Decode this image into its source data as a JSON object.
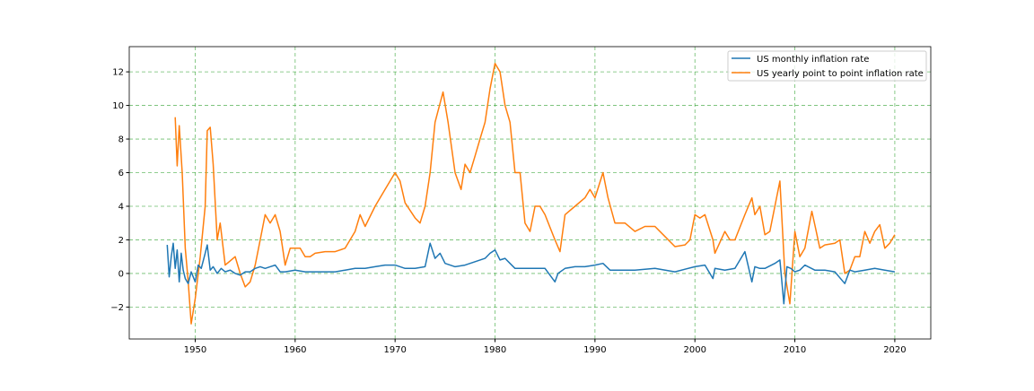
{
  "chart_data": {
    "type": "line",
    "title": "",
    "xlabel": "",
    "ylabel": "",
    "xlim": [
      1943.4,
      2023.6
    ],
    "ylim": [
      -3.9,
      13.5
    ],
    "xticks": [
      1950,
      1960,
      1970,
      1980,
      1990,
      2000,
      2010,
      2020
    ],
    "yticks": [
      -2,
      0,
      2,
      4,
      6,
      8,
      10,
      12
    ],
    "ytick_labels": [
      "−2",
      "0",
      "2",
      "4",
      "6",
      "8",
      "10",
      "12"
    ],
    "grid": true,
    "grid_color": "#2ca02c",
    "legend_position": "top-right",
    "series": [
      {
        "name": "US monthly inflation rate",
        "color": "#1f77b4",
        "x": [
          1947.2,
          1947.4,
          1947.6,
          1947.8,
          1948.0,
          1948.2,
          1948.4,
          1948.6,
          1948.8,
          1949.0,
          1949.3,
          1949.6,
          1950.0,
          1950.3,
          1950.6,
          1951.0,
          1951.2,
          1951.5,
          1951.8,
          1952.2,
          1952.6,
          1953.0,
          1953.5,
          1954.0,
          1954.5,
          1955.0,
          1955.5,
          1956.0,
          1956.5,
          1957.0,
          1957.5,
          1958.0,
          1958.5,
          1959.0,
          1960.0,
          1961.0,
          1962.0,
          1963.0,
          1964.0,
          1965.0,
          1966.0,
          1967.0,
          1968.0,
          1969.0,
          1970.0,
          1971.0,
          1972.0,
          1973.0,
          1973.5,
          1974.0,
          1974.5,
          1975.0,
          1976.0,
          1977.0,
          1978.0,
          1979.0,
          1979.5,
          1980.0,
          1980.5,
          1981.0,
          1981.5,
          1982.0,
          1983.0,
          1984.0,
          1985.0,
          1986.0,
          1986.3,
          1987.0,
          1988.0,
          1989.0,
          1990.0,
          1990.8,
          1991.5,
          1992.0,
          1994.0,
          1996.0,
          1998.0,
          2000.0,
          2001.0,
          2001.8,
          2002.0,
          2003.0,
          2004.0,
          2005.0,
          2005.7,
          2006.0,
          2006.5,
          2007.0,
          2008.0,
          2008.5,
          2008.9,
          2009.2,
          2009.6,
          2010.0,
          2010.5,
          2011.0,
          2012.0,
          2013.0,
          2014.0,
          2015.0,
          2015.5,
          2016.0,
          2017.0,
          2018.0,
          2019.0,
          2020.0
        ],
        "y": [
          1.7,
          -0.2,
          1.0,
          1.8,
          0.3,
          1.4,
          -0.5,
          1.2,
          0.2,
          -0.3,
          -0.6,
          0.1,
          -0.5,
          0.5,
          0.3,
          1.2,
          1.7,
          0.2,
          0.4,
          0.0,
          0.3,
          0.1,
          0.2,
          0.0,
          -0.1,
          0.1,
          0.1,
          0.3,
          0.4,
          0.3,
          0.4,
          0.5,
          0.1,
          0.1,
          0.2,
          0.1,
          0.1,
          0.1,
          0.1,
          0.2,
          0.3,
          0.3,
          0.4,
          0.5,
          0.5,
          0.3,
          0.3,
          0.4,
          1.8,
          0.9,
          1.2,
          0.6,
          0.4,
          0.5,
          0.7,
          0.9,
          1.2,
          1.4,
          0.8,
          0.9,
          0.6,
          0.3,
          0.3,
          0.3,
          0.3,
          -0.5,
          0.0,
          0.3,
          0.4,
          0.4,
          0.5,
          0.6,
          0.2,
          0.2,
          0.2,
          0.3,
          0.1,
          0.4,
          0.5,
          -0.3,
          0.3,
          0.2,
          0.3,
          1.3,
          -0.5,
          0.4,
          0.3,
          0.3,
          0.6,
          0.8,
          -1.8,
          0.4,
          0.3,
          0.1,
          0.2,
          0.5,
          0.2,
          0.2,
          0.1,
          -0.6,
          0.2,
          0.1,
          0.2,
          0.3,
          0.2,
          0.1
        ]
      },
      {
        "name": "US yearly point to point inflation rate",
        "color": "#ff7f0e",
        "x": [
          1948.0,
          1948.2,
          1948.4,
          1948.7,
          1949.0,
          1949.3,
          1949.6,
          1950.0,
          1950.5,
          1951.0,
          1951.2,
          1951.5,
          1951.8,
          1952.2,
          1952.5,
          1953.0,
          1954.0,
          1954.5,
          1955.0,
          1955.5,
          1956.0,
          1956.5,
          1957.0,
          1957.5,
          1958.0,
          1958.5,
          1959.0,
          1959.5,
          1960.0,
          1960.5,
          1961.0,
          1961.5,
          1962.0,
          1963.0,
          1964.0,
          1965.0,
          1966.0,
          1966.5,
          1967.0,
          1968.0,
          1969.0,
          1970.0,
          1970.5,
          1971.0,
          1972.0,
          1972.5,
          1973.0,
          1973.5,
          1974.0,
          1974.8,
          1975.3,
          1976.0,
          1976.6,
          1977.0,
          1977.5,
          1978.0,
          1978.5,
          1979.0,
          1979.5,
          1980.0,
          1980.5,
          1981.0,
          1981.5,
          1982.0,
          1982.5,
          1983.0,
          1983.5,
          1984.0,
          1984.5,
          1985.0,
          1986.0,
          1986.5,
          1987.0,
          1988.0,
          1989.0,
          1989.5,
          1990.0,
          1990.8,
          1991.3,
          1992.0,
          1993.0,
          1994.0,
          1995.0,
          1996.0,
          1997.0,
          1998.0,
          1999.0,
          1999.5,
          2000.0,
          2000.5,
          2001.0,
          2001.8,
          2002.0,
          2003.0,
          2003.5,
          2004.0,
          2005.0,
          2005.7,
          2006.0,
          2006.5,
          2007.0,
          2007.5,
          2008.0,
          2008.5,
          2009.0,
          2009.5,
          2010.0,
          2010.5,
          2011.0,
          2011.7,
          2012.0,
          2012.5,
          2013.0,
          2014.0,
          2014.5,
          2015.0,
          2015.5,
          2016.0,
          2016.5,
          2017.0,
          2017.5,
          2018.0,
          2018.5,
          2019.0,
          2019.5,
          2020.0
        ],
        "y": [
          9.3,
          6.4,
          8.8,
          6.0,
          1.5,
          -0.5,
          -3.0,
          -1.5,
          1.0,
          4.0,
          8.5,
          8.7,
          6.5,
          2.0,
          3.0,
          0.5,
          1.0,
          0.0,
          -0.8,
          -0.5,
          0.5,
          2.0,
          3.5,
          3.0,
          3.5,
          2.5,
          0.5,
          1.5,
          1.5,
          1.5,
          1.0,
          1.0,
          1.2,
          1.3,
          1.3,
          1.5,
          2.5,
          3.5,
          2.8,
          4.0,
          5.0,
          6.0,
          5.5,
          4.2,
          3.3,
          3.0,
          4.0,
          6.0,
          9.0,
          10.8,
          9.0,
          6.0,
          5.0,
          6.5,
          6.0,
          7.0,
          8.0,
          9.0,
          11.0,
          12.5,
          12.0,
          10.0,
          9.0,
          6.0,
          6.0,
          3.0,
          2.5,
          4.0,
          4.0,
          3.5,
          2.0,
          1.3,
          3.5,
          4.0,
          4.5,
          5.0,
          4.5,
          6.0,
          4.5,
          3.0,
          3.0,
          2.5,
          2.8,
          2.8,
          2.2,
          1.6,
          1.7,
          2.0,
          3.5,
          3.3,
          3.5,
          2.0,
          1.2,
          2.5,
          2.0,
          2.0,
          3.5,
          4.5,
          3.5,
          4.0,
          2.3,
          2.5,
          4.0,
          5.5,
          0.0,
          -1.8,
          2.5,
          1.0,
          1.5,
          3.7,
          2.9,
          1.5,
          1.7,
          1.8,
          2.0,
          0.0,
          0.2,
          1.0,
          1.0,
          2.5,
          1.8,
          2.5,
          2.9,
          1.5,
          1.8,
          2.3
        ]
      }
    ]
  }
}
